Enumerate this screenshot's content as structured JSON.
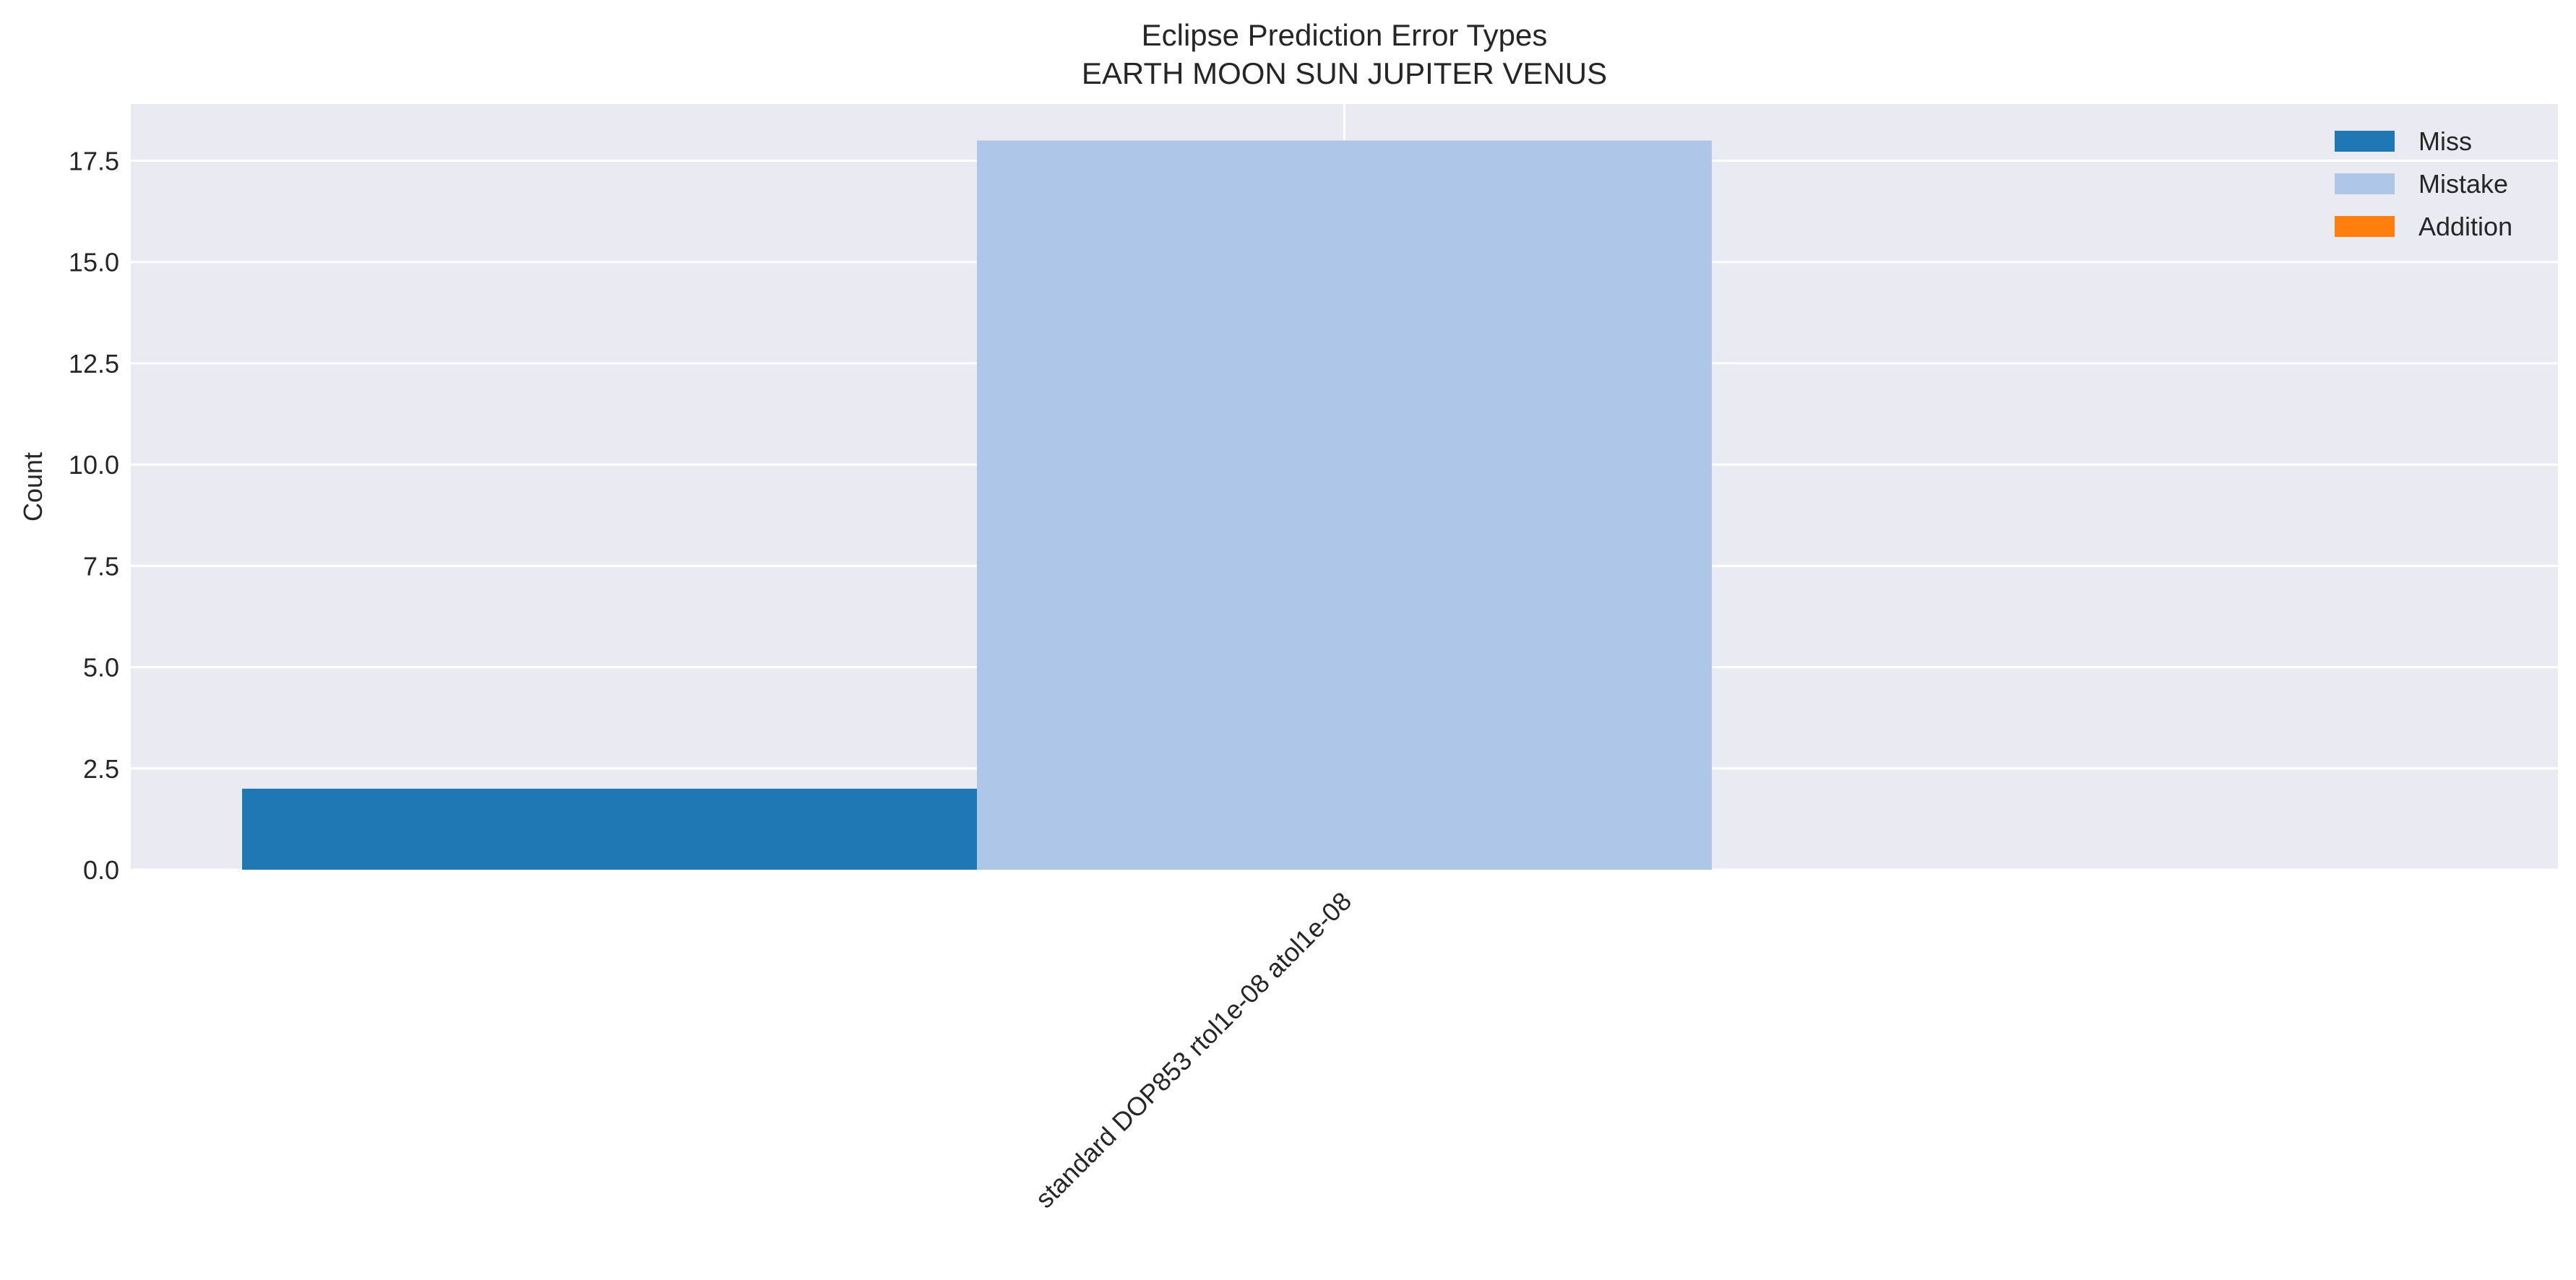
{
  "chart_data": {
    "type": "bar",
    "title": "Eclipse Prediction Error Types",
    "subtitle": "EARTH MOON SUN JUPITER VENUS",
    "xlabel": "",
    "ylabel": "Count",
    "categories": [
      "standard DOP853 rtol1e-08 atol1e-08"
    ],
    "series": [
      {
        "name": "Miss",
        "values": [
          2
        ],
        "color": "#1f77b4"
      },
      {
        "name": "Mistake",
        "values": [
          18
        ],
        "color": "#aec7e8"
      },
      {
        "name": "Addition",
        "values": [
          0
        ],
        "color": "#ff7f0e"
      }
    ],
    "ylim": [
      0,
      18.9
    ],
    "yticks": [
      "0.0",
      "2.5",
      "5.0",
      "7.5",
      "10.0",
      "12.5",
      "15.0",
      "17.5"
    ],
    "grid": true,
    "legend_position": "top-right",
    "background": "#eaeaf2",
    "gridline_color": "#ffffff"
  }
}
